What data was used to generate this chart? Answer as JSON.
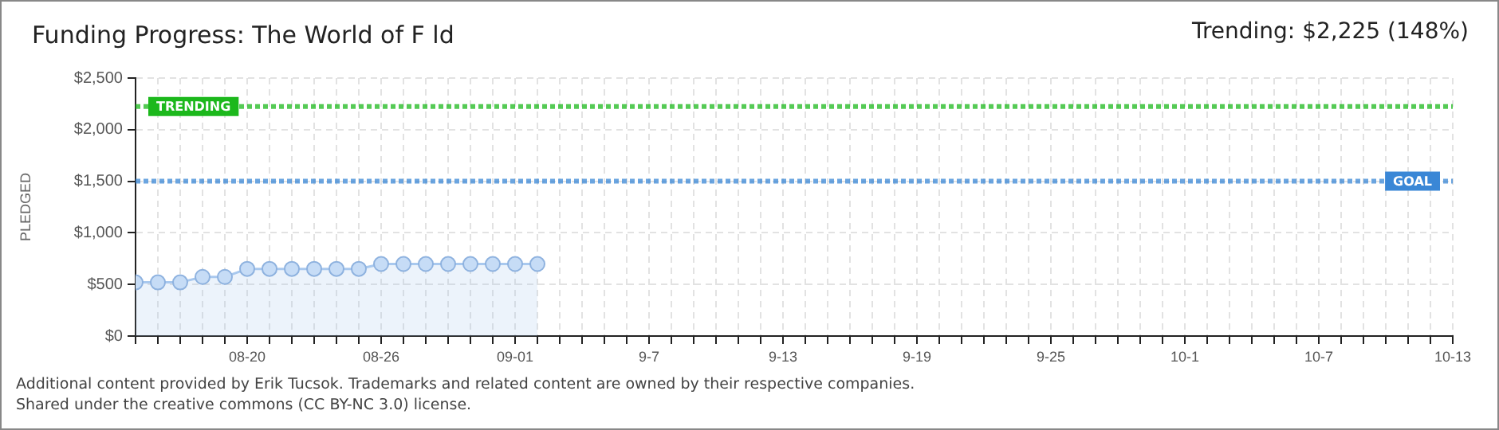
{
  "chart_data": {
    "type": "area",
    "title": "Funding Progress: The World of F ld",
    "subtitle": "Trending:  $2,225 (148%)",
    "ylabel": "PLEDGED",
    "x": [
      "--08-15",
      "--08-16",
      "--08-17",
      "--08-18",
      "--08-19",
      "--08-20",
      "--08-21",
      "--08-22",
      "--08-23",
      "--08-24",
      "--08-25",
      "--08-26",
      "--08-27",
      "--08-28",
      "--08-29",
      "--08-30",
      "--08-31",
      "--09-01",
      "--09-02"
    ],
    "series": [
      {
        "color": "#a8c8ee",
        "values": [
          520,
          520,
          520,
          573,
          573,
          651,
          651,
          651,
          651,
          651,
          651,
          698,
          698,
          698,
          698,
          698,
          698,
          698,
          698
        ]
      }
    ],
    "marker": "circle",
    "grid": true,
    "legend": false,
    "ylim": [
      0,
      2500
    ],
    "yticks": [
      {
        "value": 0,
        "label": "$0"
      },
      {
        "value": 500,
        "label": "$500"
      },
      {
        "value": 1000,
        "label": "$1,000"
      },
      {
        "value": 1500,
        "label": "$1,500"
      },
      {
        "value": 2000,
        "label": "$2,000"
      },
      {
        "value": 2500,
        "label": "$2,500"
      }
    ],
    "xlim": [
      "--08-15",
      "--10-13"
    ],
    "xticks": [
      {
        "value": "--08-15",
        "label": null
      },
      {
        "value": "--08-16",
        "label": null
      },
      {
        "value": "--08-17",
        "label": null
      },
      {
        "value": "--08-18",
        "label": null
      },
      {
        "value": "--08-19",
        "label": null
      },
      {
        "value": "--08-20",
        "label": "08-20"
      },
      {
        "value": "--08-21",
        "label": null
      },
      {
        "value": "--08-22",
        "label": null
      },
      {
        "value": "--08-23",
        "label": null
      },
      {
        "value": "--08-24",
        "label": null
      },
      {
        "value": "--08-25",
        "label": null
      },
      {
        "value": "--08-26",
        "label": "08-26"
      },
      {
        "value": "--08-27",
        "label": null
      },
      {
        "value": "--08-28",
        "label": null
      },
      {
        "value": "--08-29",
        "label": null
      },
      {
        "value": "--08-30",
        "label": null
      },
      {
        "value": "--08-31",
        "label": null
      },
      {
        "value": "--09-01",
        "label": "09-01"
      },
      {
        "value": "--09-02",
        "label": null
      },
      {
        "value": "--09-03",
        "label": null
      },
      {
        "value": "--09-04",
        "label": null
      },
      {
        "value": "--09-05",
        "label": null
      },
      {
        "value": "--09-06",
        "label": null
      },
      {
        "value": "--09-07",
        "label": "9-7"
      },
      {
        "value": "--09-08",
        "label": null
      },
      {
        "value": "--09-09",
        "label": null
      },
      {
        "value": "--09-10",
        "label": null
      },
      {
        "value": "--09-11",
        "label": null
      },
      {
        "value": "--09-12",
        "label": null
      },
      {
        "value": "--09-13",
        "label": "9-13"
      },
      {
        "value": "--09-14",
        "label": null
      },
      {
        "value": "--09-15",
        "label": null
      },
      {
        "value": "--09-16",
        "label": null
      },
      {
        "value": "--09-17",
        "label": null
      },
      {
        "value": "--09-18",
        "label": null
      },
      {
        "value": "--09-19",
        "label": "9-19"
      },
      {
        "value": "--09-20",
        "label": null
      },
      {
        "value": "--09-21",
        "label": null
      },
      {
        "value": "--09-22",
        "label": null
      },
      {
        "value": "--09-23",
        "label": null
      },
      {
        "value": "--09-24",
        "label": null
      },
      {
        "value": "--09-25",
        "label": "9-25"
      },
      {
        "value": "--09-26",
        "label": null
      },
      {
        "value": "--09-27",
        "label": null
      },
      {
        "value": "--09-28",
        "label": null
      },
      {
        "value": "--09-29",
        "label": null
      },
      {
        "value": "--09-30",
        "label": null
      },
      {
        "value": "--10-01",
        "label": "10-1"
      },
      {
        "value": "--10-02",
        "label": null
      },
      {
        "value": "--10-03",
        "label": null
      },
      {
        "value": "--10-04",
        "label": null
      },
      {
        "value": "--10-05",
        "label": null
      },
      {
        "value": "--10-06",
        "label": null
      },
      {
        "value": "--10-07",
        "label": "10-7"
      },
      {
        "value": "--10-08",
        "label": null
      },
      {
        "value": "--10-09",
        "label": null
      },
      {
        "value": "--10-10",
        "label": null
      },
      {
        "value": "--10-11",
        "label": null
      },
      {
        "value": "--10-12",
        "label": null
      },
      {
        "value": "--10-13",
        "label": "10-13"
      }
    ],
    "ref_lines": [
      {
        "axis": "y",
        "value": 1500,
        "label": "GOAL",
        "color": "#3a87d6",
        "line_style": "dotted"
      },
      {
        "axis": "y",
        "value": 2225,
        "label": "TRENDING",
        "color": "#1cb81c",
        "line_style": "dotted"
      }
    ],
    "annotations": [
      "Additional content provided by Erik Tucsok. Trademarks and related content are owned by their respective companies.",
      "Shared under the creative commons (CC BY-NC 3.0) license."
    ]
  }
}
